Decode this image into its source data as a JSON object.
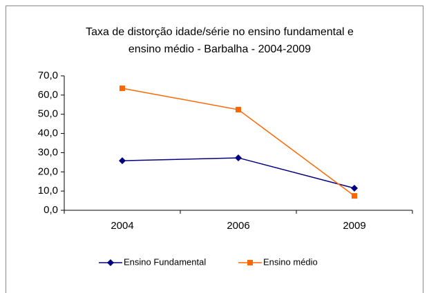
{
  "chart_data": {
    "type": "line",
    "title": [
      "Taxa de distorção idade/série no ensino fundamental e",
      "ensino médio - Barbalha - 2004-2009"
    ],
    "categories": [
      "2004",
      "2006",
      "2009"
    ],
    "series": [
      {
        "name": "Ensino Fundamental",
        "color": "#000080",
        "marker": "diamond",
        "values": [
          25.8,
          27.3,
          11.5
        ]
      },
      {
        "name": "Ensino médio",
        "color": "#ff6600",
        "marker": "square",
        "values": [
          63.5,
          52.4,
          7.5
        ]
      }
    ],
    "ylim": [
      0,
      70
    ],
    "yticks": [
      {
        "value": 0,
        "label": "0,0"
      },
      {
        "value": 10,
        "label": "10,0"
      },
      {
        "value": 20,
        "label": "20,0"
      },
      {
        "value": 30,
        "label": "30,0"
      },
      {
        "value": 40,
        "label": "40,0"
      },
      {
        "value": 50,
        "label": "50,0"
      },
      {
        "value": 60,
        "label": "60,0"
      },
      {
        "value": 70,
        "label": "70,0"
      }
    ],
    "legend": "bottom"
  }
}
